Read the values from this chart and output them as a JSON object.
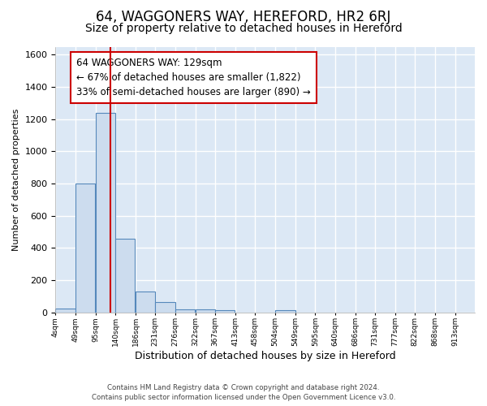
{
  "title": "64, WAGGONERS WAY, HEREFORD, HR2 6RJ",
  "subtitle": "Size of property relative to detached houses in Hereford",
  "xlabel": "Distribution of detached houses by size in Hereford",
  "ylabel": "Number of detached properties",
  "bin_edges": [
    4,
    49,
    95,
    140,
    186,
    231,
    276,
    322,
    367,
    413,
    458,
    504,
    549,
    595,
    640,
    686,
    731,
    777,
    822,
    868,
    913
  ],
  "bar_heights": [
    25,
    800,
    1240,
    455,
    130,
    65,
    20,
    20,
    15,
    0,
    0,
    15,
    0,
    0,
    0,
    0,
    0,
    0,
    0,
    0
  ],
  "bar_color": "#ccdcee",
  "bar_edge_color": "#5588bb",
  "red_line_x": 129,
  "red_line_color": "#cc0000",
  "ylim": [
    0,
    1650
  ],
  "yticks": [
    0,
    200,
    400,
    600,
    800,
    1000,
    1200,
    1400,
    1600
  ],
  "annotation_text": "64 WAGGONERS WAY: 129sqm\n← 67% of detached houses are smaller (1,822)\n33% of semi-detached houses are larger (890) →",
  "annotation_box_color": "#ffffff",
  "annotation_box_edge_color": "#cc0000",
  "footer_line1": "Contains HM Land Registry data © Crown copyright and database right 2024.",
  "footer_line2": "Contains public sector information licensed under the Open Government Licence v3.0.",
  "fig_background_color": "#ffffff",
  "plot_background_color": "#dce8f5",
  "grid_color": "#ffffff",
  "title_fontsize": 12,
  "subtitle_fontsize": 10,
  "annotation_fontsize": 8.5
}
